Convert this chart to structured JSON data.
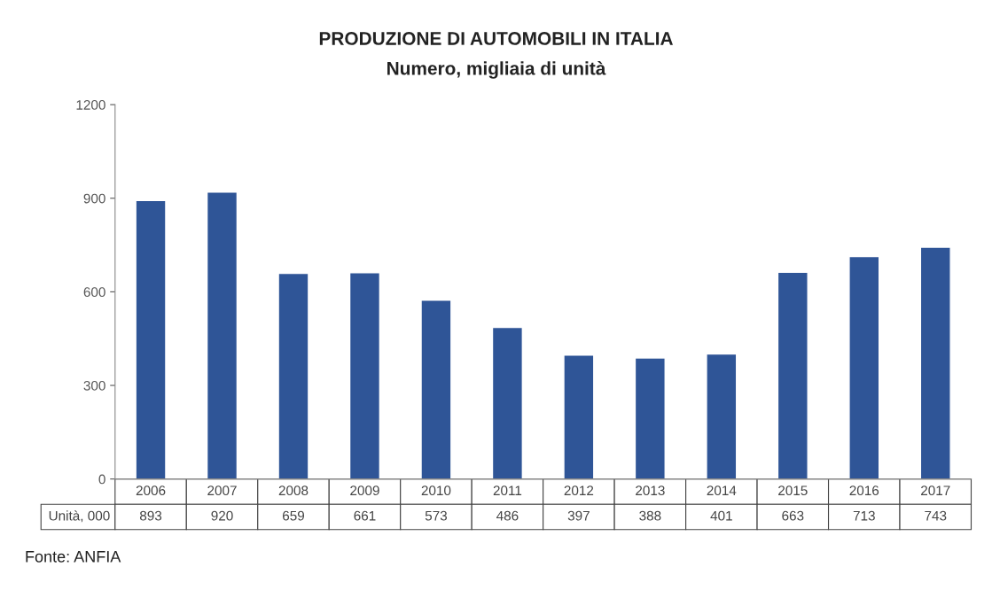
{
  "chart_data": {
    "type": "bar",
    "title": "PRODUZIONE DI AUTOMOBILI IN ITALIA",
    "subtitle": "Numero, migliaia di unità",
    "categories": [
      "2006",
      "2007",
      "2008",
      "2009",
      "2010",
      "2011",
      "2012",
      "2013",
      "2014",
      "2015",
      "2016",
      "2017"
    ],
    "series": [
      {
        "name": "Unità, 000",
        "color": "#2f5597",
        "values": [
          893,
          920,
          659,
          661,
          573,
          486,
          397,
          388,
          401,
          663,
          713,
          743
        ]
      }
    ],
    "ylim": [
      0,
      1200
    ],
    "yticks": [
      0,
      300,
      600,
      900,
      1200
    ],
    "grid": false,
    "legend": false,
    "data_labels": true,
    "tick_labels": "y",
    "annotations": [
      "Fonte: ANFIA"
    ]
  }
}
